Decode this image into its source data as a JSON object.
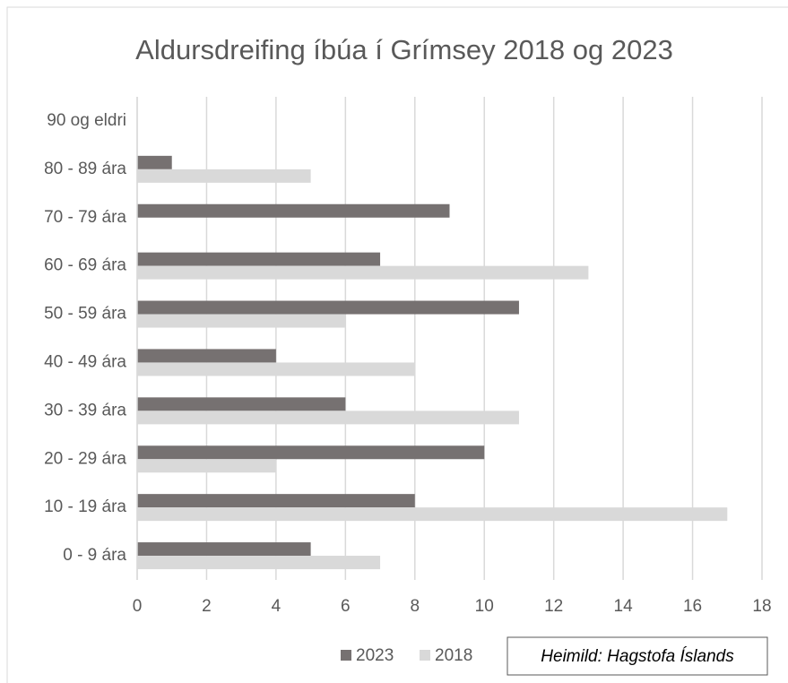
{
  "chart_data": {
    "type": "bar",
    "orientation": "horizontal",
    "title": "Aldursdreifing íbúa í Grímsey 2018 og 2023",
    "annotation": "Heimild: Hagstofa Íslands",
    "categories": [
      "0 - 9 ára",
      "10 - 19 ára",
      "20 - 29 ára",
      "30 - 39 ára",
      "40 - 49 ára",
      "50 - 59 ára",
      "60 - 69 ára",
      "70 - 79 ára",
      "80 - 89 ára",
      "90 og eldri"
    ],
    "series": [
      {
        "name": "2023",
        "color": "#767171",
        "values": [
          5,
          8,
          10,
          6,
          4,
          11,
          7,
          9,
          1,
          0
        ]
      },
      {
        "name": "2018",
        "color": "#d9d9d9",
        "values": [
          7,
          17,
          4,
          11,
          8,
          6,
          13,
          0,
          5,
          0
        ]
      }
    ],
    "xlim": [
      0,
      18
    ],
    "xticks": [
      0,
      2,
      4,
      6,
      8,
      10,
      12,
      14,
      16,
      18
    ],
    "grid": true,
    "legend": "bottom"
  }
}
